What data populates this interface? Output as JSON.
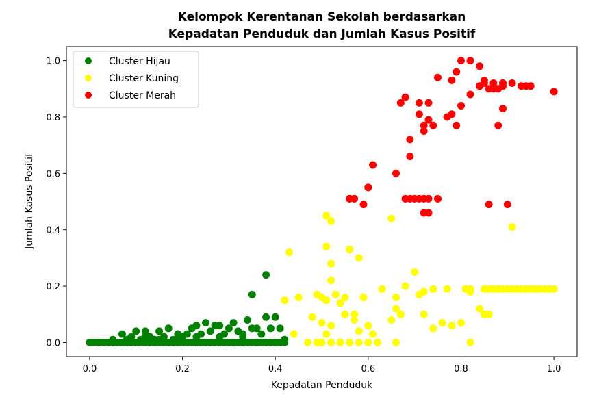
{
  "chart_data": {
    "type": "scatter",
    "title_line1": "Kelompok Kerentanan Sekolah berdasarkan",
    "title_line2": "Kepadatan Penduduk dan Jumlah Kasus Positif",
    "xlabel": "Kepadatan Penduduk",
    "ylabel": "Jumlah Kasus Positif",
    "xlim": [
      -0.05,
      1.05
    ],
    "ylim": [
      -0.05,
      1.05
    ],
    "xticks": [
      "0.0",
      "0.2",
      "0.4",
      "0.6",
      "0.8",
      "1.0"
    ],
    "yticks": [
      "0.0",
      "0.2",
      "0.4",
      "0.6",
      "0.8",
      "1.0"
    ],
    "grid": false,
    "legend_position": "top-left",
    "series": [
      {
        "name": "Cluster Hijau",
        "color": "#008000",
        "points": [
          [
            0.0,
            0.0
          ],
          [
            0.01,
            0.0
          ],
          [
            0.02,
            0.0
          ],
          [
            0.03,
            0.0
          ],
          [
            0.04,
            0.0
          ],
          [
            0.05,
            0.0
          ],
          [
            0.06,
            0.0
          ],
          [
            0.07,
            0.0
          ],
          [
            0.08,
            0.0
          ],
          [
            0.09,
            0.0
          ],
          [
            0.1,
            0.0
          ],
          [
            0.11,
            0.0
          ],
          [
            0.12,
            0.0
          ],
          [
            0.13,
            0.0
          ],
          [
            0.14,
            0.0
          ],
          [
            0.15,
            0.0
          ],
          [
            0.16,
            0.0
          ],
          [
            0.17,
            0.0
          ],
          [
            0.18,
            0.0
          ],
          [
            0.19,
            0.0
          ],
          [
            0.2,
            0.0
          ],
          [
            0.21,
            0.0
          ],
          [
            0.22,
            0.0
          ],
          [
            0.23,
            0.0
          ],
          [
            0.24,
            0.0
          ],
          [
            0.25,
            0.0
          ],
          [
            0.26,
            0.0
          ],
          [
            0.27,
            0.0
          ],
          [
            0.28,
            0.0
          ],
          [
            0.29,
            0.0
          ],
          [
            0.3,
            0.0
          ],
          [
            0.31,
            0.0
          ],
          [
            0.32,
            0.0
          ],
          [
            0.33,
            0.0
          ],
          [
            0.34,
            0.0
          ],
          [
            0.35,
            0.0
          ],
          [
            0.36,
            0.0
          ],
          [
            0.37,
            0.0
          ],
          [
            0.38,
            0.0
          ],
          [
            0.39,
            0.0
          ],
          [
            0.4,
            0.0
          ],
          [
            0.41,
            0.0
          ],
          [
            0.42,
            0.0
          ],
          [
            0.05,
            0.01
          ],
          [
            0.07,
            0.03
          ],
          [
            0.08,
            0.01
          ],
          [
            0.09,
            0.02
          ],
          [
            0.1,
            0.04
          ],
          [
            0.11,
            0.01
          ],
          [
            0.12,
            0.04
          ],
          [
            0.13,
            0.02
          ],
          [
            0.14,
            0.01
          ],
          [
            0.15,
            0.04
          ],
          [
            0.16,
            0.02
          ],
          [
            0.17,
            0.05
          ],
          [
            0.18,
            0.01
          ],
          [
            0.19,
            0.03
          ],
          [
            0.2,
            0.02
          ],
          [
            0.21,
            0.03
          ],
          [
            0.22,
            0.05
          ],
          [
            0.23,
            0.06
          ],
          [
            0.24,
            0.03
          ],
          [
            0.25,
            0.07
          ],
          [
            0.26,
            0.04
          ],
          [
            0.27,
            0.06
          ],
          [
            0.28,
            0.02
          ],
          [
            0.29,
            0.03
          ],
          [
            0.3,
            0.05
          ],
          [
            0.31,
            0.07
          ],
          [
            0.32,
            0.04
          ],
          [
            0.33,
            0.03
          ],
          [
            0.34,
            0.08
          ],
          [
            0.35,
            0.05
          ],
          [
            0.36,
            0.05
          ],
          [
            0.37,
            0.03
          ],
          [
            0.38,
            0.09
          ],
          [
            0.39,
            0.05
          ],
          [
            0.4,
            0.09
          ],
          [
            0.41,
            0.05
          ],
          [
            0.42,
            0.01
          ],
          [
            0.35,
            0.17
          ],
          [
            0.38,
            0.24
          ],
          [
            0.19,
            0.01
          ],
          [
            0.23,
            0.02
          ],
          [
            0.28,
            0.06
          ],
          [
            0.33,
            0.02
          ],
          [
            0.15,
            0.01
          ],
          [
            0.12,
            0.02
          ]
        ]
      },
      {
        "name": "Cluster Kuning",
        "color": "#ffff00",
        "points": [
          [
            0.43,
            0.32
          ],
          [
            0.42,
            0.15
          ],
          [
            0.45,
            0.16
          ],
          [
            0.44,
            0.03
          ],
          [
            0.47,
            0.0
          ],
          [
            0.49,
            0.0
          ],
          [
            0.5,
            0.0
          ],
          [
            0.52,
            0.0
          ],
          [
            0.54,
            0.0
          ],
          [
            0.56,
            0.0
          ],
          [
            0.58,
            0.0
          ],
          [
            0.6,
            0.0
          ],
          [
            0.62,
            0.0
          ],
          [
            0.66,
            0.0
          ],
          [
            0.82,
            0.0
          ],
          [
            0.51,
            0.45
          ],
          [
            0.52,
            0.43
          ],
          [
            0.51,
            0.34
          ],
          [
            0.52,
            0.28
          ],
          [
            0.52,
            0.22
          ],
          [
            0.56,
            0.33
          ],
          [
            0.58,
            0.3
          ],
          [
            0.48,
            0.09
          ],
          [
            0.49,
            0.17
          ],
          [
            0.5,
            0.16
          ],
          [
            0.51,
            0.15
          ],
          [
            0.53,
            0.17
          ],
          [
            0.54,
            0.14
          ],
          [
            0.55,
            0.16
          ],
          [
            0.57,
            0.1
          ],
          [
            0.59,
            0.16
          ],
          [
            0.5,
            0.07
          ],
          [
            0.51,
            0.03
          ],
          [
            0.52,
            0.06
          ],
          [
            0.55,
            0.1
          ],
          [
            0.57,
            0.08
          ],
          [
            0.58,
            0.04
          ],
          [
            0.6,
            0.06
          ],
          [
            0.61,
            0.03
          ],
          [
            0.63,
            0.19
          ],
          [
            0.65,
            0.44
          ],
          [
            0.65,
            0.08
          ],
          [
            0.66,
            0.16
          ],
          [
            0.66,
            0.12
          ],
          [
            0.67,
            0.1
          ],
          [
            0.68,
            0.2
          ],
          [
            0.7,
            0.25
          ],
          [
            0.71,
            0.17
          ],
          [
            0.72,
            0.18
          ],
          [
            0.72,
            0.1
          ],
          [
            0.74,
            0.05
          ],
          [
            0.74,
            0.19
          ],
          [
            0.76,
            0.07
          ],
          [
            0.77,
            0.19
          ],
          [
            0.78,
            0.06
          ],
          [
            0.8,
            0.07
          ],
          [
            0.81,
            0.19
          ],
          [
            0.82,
            0.18
          ],
          [
            0.82,
            0.19
          ],
          [
            0.84,
            0.12
          ],
          [
            0.85,
            0.1
          ],
          [
            0.86,
            0.1
          ],
          [
            0.85,
            0.19
          ],
          [
            0.86,
            0.19
          ],
          [
            0.87,
            0.19
          ],
          [
            0.88,
            0.19
          ],
          [
            0.89,
            0.19
          ],
          [
            0.9,
            0.19
          ],
          [
            0.91,
            0.19
          ],
          [
            0.92,
            0.19
          ],
          [
            0.93,
            0.19
          ],
          [
            0.94,
            0.19
          ],
          [
            0.95,
            0.19
          ],
          [
            0.96,
            0.19
          ],
          [
            0.97,
            0.19
          ],
          [
            0.98,
            0.19
          ],
          [
            0.99,
            0.19
          ],
          [
            1.0,
            0.19
          ],
          [
            0.91,
            0.41
          ]
        ]
      },
      {
        "name": "Cluster Merah",
        "color": "#ff0000",
        "points": [
          [
            0.56,
            0.51
          ],
          [
            0.57,
            0.51
          ],
          [
            0.59,
            0.49
          ],
          [
            0.6,
            0.55
          ],
          [
            0.61,
            0.63
          ],
          [
            0.66,
            0.6
          ],
          [
            0.67,
            0.85
          ],
          [
            0.68,
            0.87
          ],
          [
            0.68,
            0.51
          ],
          [
            0.69,
            0.51
          ],
          [
            0.69,
            0.72
          ],
          [
            0.69,
            0.66
          ],
          [
            0.7,
            0.51
          ],
          [
            0.71,
            0.51
          ],
          [
            0.71,
            0.81
          ],
          [
            0.71,
            0.85
          ],
          [
            0.72,
            0.51
          ],
          [
            0.72,
            0.77
          ],
          [
            0.72,
            0.75
          ],
          [
            0.72,
            0.46
          ],
          [
            0.73,
            0.51
          ],
          [
            0.73,
            0.85
          ],
          [
            0.73,
            0.79
          ],
          [
            0.73,
            0.46
          ],
          [
            0.74,
            0.77
          ],
          [
            0.75,
            0.94
          ],
          [
            0.75,
            0.51
          ],
          [
            0.77,
            0.8
          ],
          [
            0.78,
            0.93
          ],
          [
            0.78,
            0.81
          ],
          [
            0.79,
            0.77
          ],
          [
            0.79,
            0.96
          ],
          [
            0.8,
            1.0
          ],
          [
            0.8,
            0.84
          ],
          [
            0.82,
            1.0
          ],
          [
            0.82,
            0.88
          ],
          [
            0.84,
            0.98
          ],
          [
            0.84,
            0.91
          ],
          [
            0.85,
            0.92
          ],
          [
            0.85,
            0.93
          ],
          [
            0.86,
            0.49
          ],
          [
            0.87,
            0.92
          ],
          [
            0.87,
            0.9
          ],
          [
            0.88,
            0.9
          ],
          [
            0.88,
            0.77
          ],
          [
            0.89,
            0.91
          ],
          [
            0.89,
            0.92
          ],
          [
            0.89,
            0.83
          ],
          [
            0.9,
            0.49
          ],
          [
            0.91,
            0.92
          ],
          [
            0.93,
            0.91
          ],
          [
            0.94,
            0.91
          ],
          [
            0.95,
            0.91
          ],
          [
            1.0,
            0.89
          ],
          [
            0.86,
            0.9
          ]
        ]
      }
    ]
  }
}
